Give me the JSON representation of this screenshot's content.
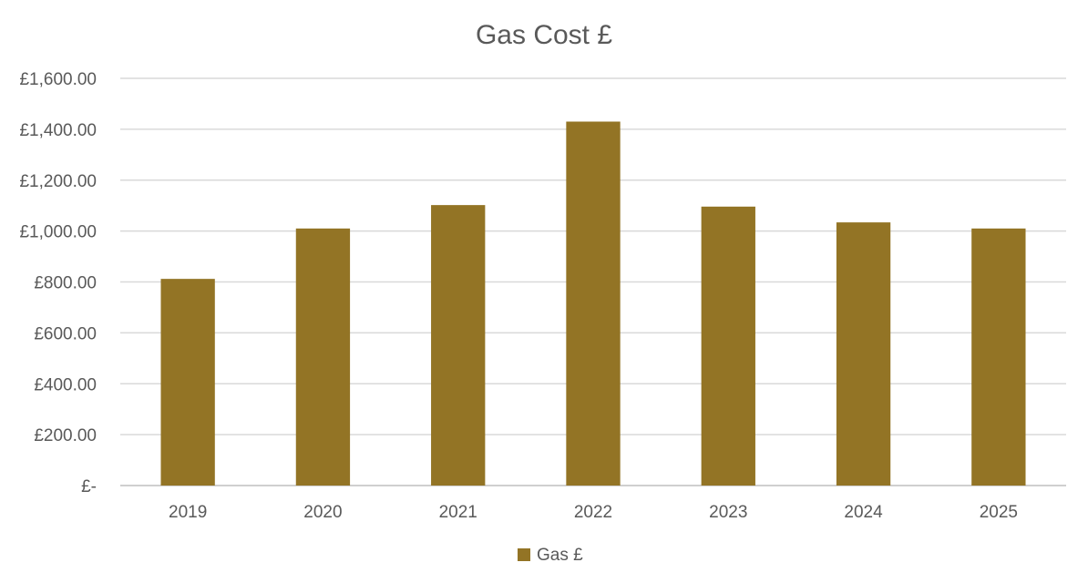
{
  "chart_data": {
    "type": "bar",
    "title": "Gas Cost £",
    "xlabel": "",
    "ylabel": "",
    "categories": [
      "2019",
      "2020",
      "2021",
      "2022",
      "2023",
      "2024",
      "2025"
    ],
    "series": [
      {
        "name": "Gas £",
        "values": [
          812,
          1010,
          1102,
          1430,
          1096,
          1034,
          1010
        ],
        "color": "#937425"
      }
    ],
    "ylim": [
      0,
      1600
    ],
    "yticks": [
      0,
      200,
      400,
      600,
      800,
      1000,
      1200,
      1400,
      1600
    ],
    "ytick_labels": [
      "£-",
      "£200.00",
      "£400.00",
      "£600.00",
      "£800.00",
      "£1,000.00",
      "£1,200.00",
      "£1,400.00",
      "£1,600.00"
    ],
    "grid": true,
    "legend": "bottom"
  }
}
